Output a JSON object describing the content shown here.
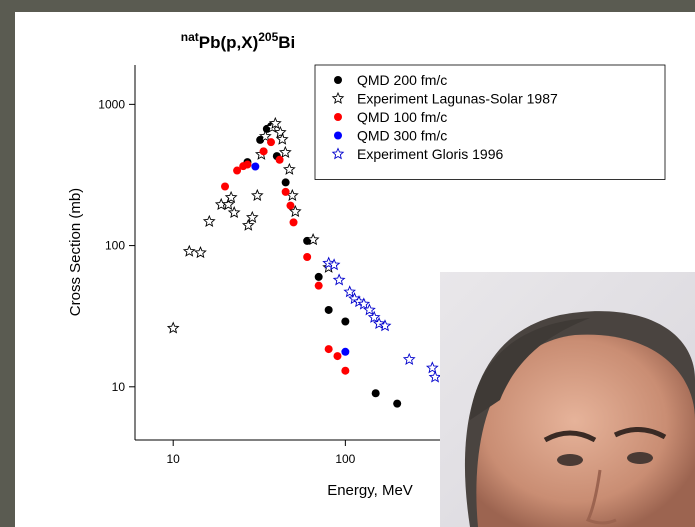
{
  "chart_data": {
    "type": "scatter",
    "title_parts": [
      {
        "text": "nat",
        "sup": true
      },
      {
        "text": "Pb(p,X)",
        "sup": false
      },
      {
        "text": "205",
        "sup": true
      },
      {
        "text": "Bi",
        "sup": false
      }
    ],
    "x_label": "Energy, MeV",
    "y_label": "Cross Section (mb)",
    "xscale": "log",
    "yscale": "log",
    "xlim": [
      6,
      8000
    ],
    "ylim": [
      4.2,
      1900
    ],
    "xticks": [
      10,
      100
    ],
    "yticks": [
      10,
      100,
      1000
    ],
    "legend": "upper right",
    "series": [
      {
        "name": "QMD 200 fm/c",
        "color": "#000000",
        "marker": "circle",
        "x": [
          27,
          32,
          35,
          37,
          40,
          45,
          60,
          70,
          80,
          100,
          150,
          200
        ],
        "values": [
          390,
          560,
          670,
          700,
          430,
          280,
          108,
          60,
          35,
          29,
          9,
          7.6
        ]
      },
      {
        "name": "Experiment  Lagunas-Solar 1987",
        "color": "#000000",
        "marker": "star",
        "x": [
          10,
          12.4,
          14.4,
          16.2,
          19,
          20.9,
          21.7,
          22.6,
          27.3,
          28.8,
          30.8,
          32.5,
          34.3,
          37.6,
          39.2,
          41.9,
          43,
          44.8,
          47.3,
          49.2,
          51.2,
          65,
          80
        ],
        "values": [
          26,
          91,
          89,
          148,
          195,
          195,
          219,
          171,
          139,
          158,
          226,
          442,
          593,
          687,
          732,
          632,
          565,
          456,
          346,
          226,
          174,
          110,
          70
        ]
      },
      {
        "name": "QMD 100 fm/c",
        "color": "#ff0000",
        "marker": "circle",
        "x": [
          20,
          23.5,
          25.5,
          27,
          33.5,
          37,
          41.5,
          45,
          48,
          50,
          60,
          70,
          80,
          90,
          100
        ],
        "values": [
          262,
          340,
          365,
          375,
          465,
          540,
          405,
          240,
          192,
          146,
          83,
          52,
          18.5,
          16.5,
          13
        ]
      },
      {
        "name": "QMD 300 fm/c",
        "color": "#0000ff",
        "marker": "circle",
        "x": [
          30,
          100
        ],
        "values": [
          363,
          17.7
        ]
      },
      {
        "name": "Experiment Gloris 1996",
        "color": "#0000cc",
        "marker": "star",
        "x": [
          80,
          86,
          92,
          106,
          113,
          120,
          128,
          138,
          147,
          157,
          170,
          235,
          320,
          332
        ],
        "values": [
          75,
          73,
          57,
          47,
          42,
          40,
          38.5,
          35,
          31,
          28,
          27,
          15.6,
          13.6,
          11.7
        ]
      }
    ]
  }
}
